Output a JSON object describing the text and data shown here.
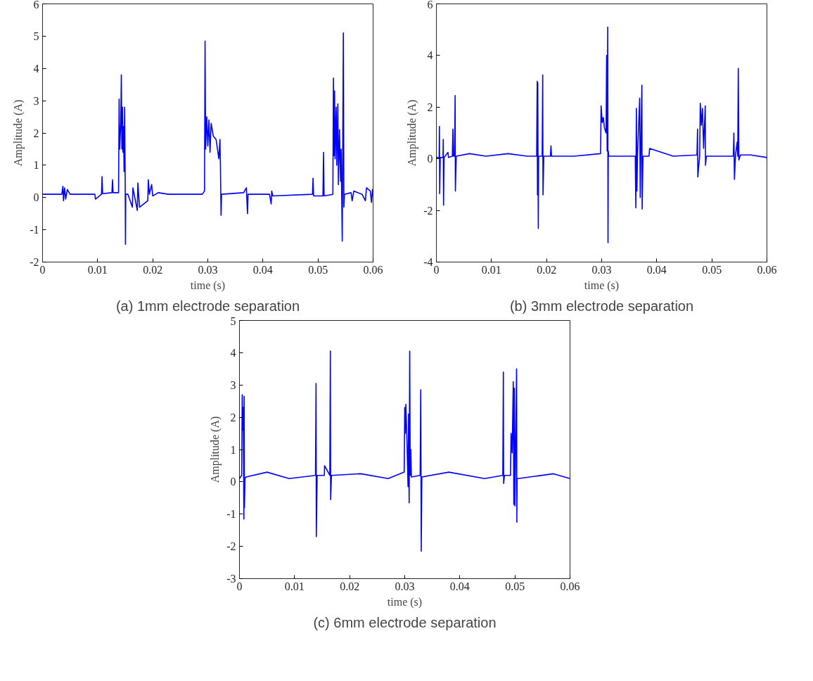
{
  "chart_data": [
    {
      "type": "line",
      "title": "(a) 1mm electrode separation",
      "xlabel": "time (s)",
      "ylabel": "Amplitude (A)",
      "xlim": [
        0,
        0.06
      ],
      "ylim": [
        -2,
        6
      ],
      "xticks": [
        0,
        0.01,
        0.02,
        0.03,
        0.04,
        0.05,
        0.06
      ],
      "yticks": [
        -2,
        -1,
        0,
        1,
        2,
        3,
        4,
        5,
        6
      ],
      "x": [
        0,
        0.0015,
        0.0035,
        0.0037,
        0.0038,
        0.004,
        0.0042,
        0.0045,
        0.005,
        0.0095,
        0.0096,
        0.0107,
        0.0108,
        0.0109,
        0.0126,
        0.0127,
        0.0128,
        0.0138,
        0.0139,
        0.014,
        0.0142,
        0.0143,
        0.0144,
        0.0145,
        0.0146,
        0.0147,
        0.0148,
        0.0149,
        0.015,
        0.01505,
        0.0151,
        0.0155,
        0.0163,
        0.0164,
        0.0172,
        0.0173,
        0.0176,
        0.0191,
        0.0192,
        0.0194,
        0.0198,
        0.02,
        0.021,
        0.0228,
        0.029,
        0.0294,
        0.0295,
        0.0296,
        0.0298,
        0.03,
        0.0302,
        0.0304,
        0.0306,
        0.031,
        0.0315,
        0.032,
        0.0322,
        0.0323,
        0.0324,
        0.0325,
        0.0365,
        0.037,
        0.0372,
        0.0373,
        0.0412,
        0.0415,
        0.0416,
        0.0418,
        0.049,
        0.0491,
        0.0492,
        0.0509,
        0.051,
        0.0511,
        0.0527,
        0.0528,
        0.0529,
        0.053,
        0.0531,
        0.0533,
        0.0534,
        0.0536,
        0.0537,
        0.0539,
        0.0541,
        0.0542,
        0.0544,
        0.0546,
        0.0547,
        0.0548,
        0.056,
        0.0562,
        0.0565,
        0.058,
        0.0586,
        0.0588,
        0.0595,
        0.0597,
        0.0599,
        0.06
      ],
      "series": [
        {
          "color": "#0000ff",
          "values": [
            0.1,
            0.1,
            0.1,
            0.35,
            -0.1,
            0.3,
            -0.05,
            0.25,
            0.1,
            0.1,
            -0.05,
            0.1,
            0.65,
            0.12,
            0.15,
            0.55,
            0.15,
            0.15,
            3.05,
            1.5,
            2.3,
            3.8,
            1.5,
            2.8,
            1.4,
            2.2,
            0.8,
            2.8,
            0.5,
            -1.45,
            0.1,
            0.1,
            -0.3,
            0.3,
            -0.4,
            0.45,
            -0.3,
            -0.1,
            0.55,
            0.1,
            0.4,
            0.05,
            0.15,
            0.1,
            0.1,
            0.2,
            4.85,
            1.5,
            2.5,
            1.6,
            2.4,
            1.4,
            2.3,
            1.9,
            1.8,
            1.2,
            1.8,
            0.9,
            -0.55,
            0.1,
            0.15,
            0.3,
            -0.5,
            0.1,
            0.1,
            -0.2,
            0.2,
            0.05,
            0.1,
            0.6,
            0.05,
            0.05,
            1.4,
            0.05,
            0.1,
            3.7,
            1.3,
            3.3,
            1.2,
            2.8,
            1.0,
            2.9,
            0.4,
            2.1,
            0.5,
            1.5,
            -1.35,
            5.1,
            -0.3,
            0.1,
            0.15,
            -0.1,
            0.2,
            0.1,
            -0.1,
            0.3,
            0.2,
            -0.15,
            0.25,
            0.05
          ]
        }
      ]
    },
    {
      "type": "line",
      "title": "(b) 3mm electrode separation",
      "xlabel": "time (s)",
      "ylabel": "Amplitude (A)",
      "xlim": [
        0,
        0.06
      ],
      "ylim": [
        -4,
        6
      ],
      "xticks": [
        0,
        0.01,
        0.02,
        0.03,
        0.04,
        0.05,
        0.06
      ],
      "yticks": [
        -4,
        -2,
        0,
        2,
        4,
        6
      ],
      "x": [
        0,
        0.0005,
        0.00055,
        0.0006,
        0.0007,
        0.0012,
        0.00125,
        0.0013,
        0.0014,
        0.0021,
        0.0022,
        0.0029,
        0.003,
        0.0031,
        0.0033,
        0.0034,
        0.00345,
        0.0036,
        0.006,
        0.009,
        0.013,
        0.0165,
        0.0182,
        0.0183,
        0.01835,
        0.0184,
        0.0185,
        0.01855,
        0.0187,
        0.0192,
        0.0193,
        0.01935,
        0.0195,
        0.0207,
        0.0208,
        0.0209,
        0.025,
        0.0298,
        0.0299,
        0.0301,
        0.0303,
        0.0305,
        0.0308,
        0.0309,
        0.031,
        0.0311,
        0.03115,
        0.0312,
        0.0313,
        0.034,
        0.0361,
        0.0362,
        0.0363,
        0.0364,
        0.0365,
        0.0369,
        0.037,
        0.0371,
        0.0373,
        0.03735,
        0.0375,
        0.0386,
        0.0387,
        0.043,
        0.0473,
        0.0474,
        0.04745,
        0.0478,
        0.0479,
        0.0481,
        0.0483,
        0.0485,
        0.0488,
        0.04885,
        0.049,
        0.0539,
        0.054,
        0.0541,
        0.0543,
        0.0546,
        0.0547,
        0.0548,
        0.0549,
        0.0552,
        0.057,
        0.06
      ],
      "series": [
        {
          "color": "#0000ff",
          "values": [
            0.05,
            0.05,
            1.25,
            -1.35,
            0.05,
            0.05,
            0.75,
            -1.8,
            0.05,
            0.25,
            0.05,
            0.1,
            1.15,
            0.1,
            0.1,
            2.45,
            -1.25,
            0.1,
            0.2,
            0.1,
            0.2,
            0.1,
            0.1,
            3.0,
            -1.4,
            2.95,
            -2.7,
            0.1,
            0.1,
            0.1,
            3.25,
            -1.4,
            0.1,
            0.1,
            0.5,
            0.1,
            0.1,
            0.2,
            2.05,
            1.4,
            1.6,
            1.2,
            1.0,
            4.0,
            0.3,
            5.1,
            -3.25,
            0.3,
            0.1,
            0.1,
            0.1,
            -1.9,
            1.95,
            -1.25,
            0.1,
            2.35,
            -1.5,
            0.1,
            2.85,
            -1.95,
            0.1,
            0.1,
            0.4,
            0.1,
            0.15,
            1.15,
            -0.7,
            0.15,
            2.15,
            1.3,
            1.95,
            0.4,
            2.05,
            -0.25,
            0.1,
            0.1,
            1.0,
            -0.8,
            0.15,
            0.65,
            0.1,
            3.5,
            -0.05,
            0.15,
            0.15,
            0.05
          ]
        }
      ]
    },
    {
      "type": "line",
      "title": "(c) 6mm electrode separation",
      "xlabel": "time (s)",
      "ylabel": "Amplitude (A)",
      "xlim": [
        0,
        0.06
      ],
      "ylim": [
        -3,
        5
      ],
      "xticks": [
        0,
        0.01,
        0.02,
        0.03,
        0.04,
        0.05,
        0.06
      ],
      "yticks": [
        -3,
        -2,
        -1,
        0,
        1,
        2,
        3,
        4,
        5
      ],
      "x": [
        0,
        0.0004,
        0.0005,
        0.0006,
        0.0007,
        0.0008,
        0.00085,
        0.0009,
        0.001,
        0.0012,
        0.005,
        0.009,
        0.0138,
        0.0139,
        0.01395,
        0.0141,
        0.0154,
        0.01545,
        0.0164,
        0.0165,
        0.01655,
        0.0167,
        0.022,
        0.027,
        0.0299,
        0.03,
        0.0301,
        0.0302,
        0.0304,
        0.0306,
        0.0307,
        0.0308,
        0.0309,
        0.031,
        0.0311,
        0.0312,
        0.0328,
        0.0329,
        0.033,
        0.0331,
        0.038,
        0.0445,
        0.0478,
        0.0479,
        0.04795,
        0.0481,
        0.0492,
        0.0493,
        0.0495,
        0.0497,
        0.0498,
        0.0499,
        0.05,
        0.0502,
        0.0503,
        0.05035,
        0.0504,
        0.0506,
        0.057,
        0.06
      ],
      "series": [
        {
          "color": "#0000ff",
          "values": [
            0.1,
            0.2,
            2.7,
            1.6,
            2.3,
            -1.15,
            2.65,
            -0.8,
            0.1,
            0.15,
            0.3,
            0.1,
            0.2,
            3.05,
            -1.7,
            0.2,
            0.2,
            0.5,
            0.2,
            4.05,
            -0.55,
            0.2,
            0.25,
            0.1,
            0.3,
            2.3,
            1.5,
            2.4,
            1.3,
            -0.15,
            2.1,
            -0.65,
            4.05,
            0.2,
            1.0,
            0.15,
            0.2,
            2.85,
            -2.15,
            0.15,
            0.3,
            0.1,
            0.2,
            3.4,
            -0.05,
            0.2,
            0.2,
            1.5,
            0.9,
            3.1,
            -0.7,
            2.9,
            -0.75,
            2.0,
            3.5,
            -1.25,
            0.1,
            0.1,
            0.25,
            0.1
          ]
        }
      ]
    }
  ]
}
